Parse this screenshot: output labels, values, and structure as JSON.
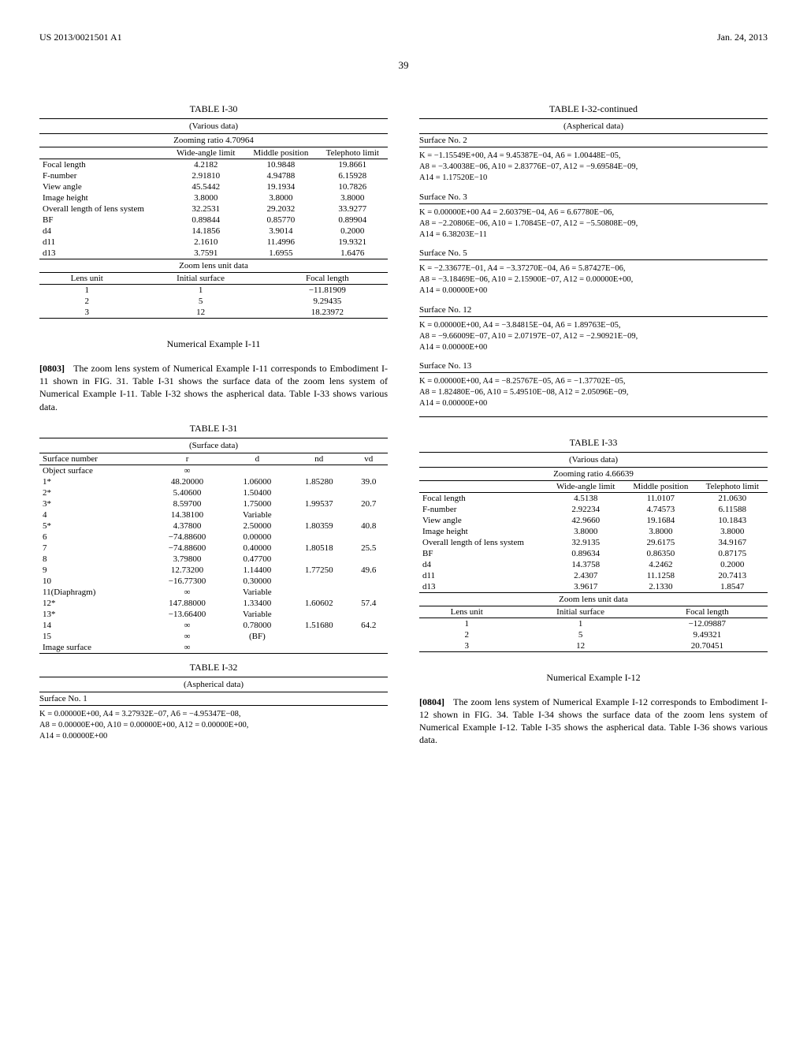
{
  "header": {
    "pubnum": "US 2013/0021501 A1",
    "date": "Jan. 24, 2013",
    "page": "39"
  },
  "tableI30": {
    "title": "TABLE I-30",
    "subtitle": "(Various data)",
    "zoom": "Zooming ratio 4.70964",
    "cols": [
      "",
      "Wide-angle limit",
      "Middle position",
      "Telephoto limit"
    ],
    "rows": [
      [
        "Focal length",
        "4.2182",
        "10.9848",
        "19.8661"
      ],
      [
        "F-number",
        "2.91810",
        "4.94788",
        "6.15928"
      ],
      [
        "View angle",
        "45.5442",
        "19.1934",
        "10.7826"
      ],
      [
        "Image height",
        "3.8000",
        "3.8000",
        "3.8000"
      ],
      [
        "Overall length of lens system",
        "32.2531",
        "29.2032",
        "33.9277"
      ],
      [
        "BF",
        "0.89844",
        "0.85770",
        "0.89904"
      ],
      [
        "d4",
        "14.1856",
        "3.9014",
        "0.2000"
      ],
      [
        "d11",
        "2.1610",
        "11.4996",
        "19.9321"
      ],
      [
        "d13",
        "3.7591",
        "1.6955",
        "1.6476"
      ]
    ],
    "zoomUnitTitle": "Zoom lens unit data",
    "zoomUnitCols": [
      "Lens unit",
      "Initial surface",
      "Focal length"
    ],
    "zoomUnitRows": [
      [
        "1",
        "1",
        "−11.81909"
      ],
      [
        "2",
        "5",
        "9.29435"
      ],
      [
        "3",
        "12",
        "18.23972"
      ]
    ]
  },
  "exampleI11": {
    "heading": "Numerical Example I-11",
    "paraNum": "[0803]",
    "text": "The zoom lens system of Numerical Example I-11 corresponds to Embodiment I-11 shown in FIG. 31. Table I-31 shows the surface data of the zoom lens system of Numerical Example I-11. Table I-32 shows the aspherical data. Table I-33 shows various data."
  },
  "tableI31": {
    "title": "TABLE I-31",
    "subtitle": "(Surface data)",
    "cols": [
      "Surface number",
      "r",
      "d",
      "nd",
      "vd"
    ],
    "rows": [
      [
        "Object surface",
        "∞",
        "",
        "",
        ""
      ],
      [
        "1*",
        "48.20000",
        "1.06000",
        "1.85280",
        "39.0"
      ],
      [
        "2*",
        "5.40600",
        "1.50400",
        "",
        ""
      ],
      [
        "3*",
        "8.59700",
        "1.75000",
        "1.99537",
        "20.7"
      ],
      [
        "4",
        "14.38100",
        "Variable",
        "",
        ""
      ],
      [
        "5*",
        "4.37800",
        "2.50000",
        "1.80359",
        "40.8"
      ],
      [
        "6",
        "−74.88600",
        "0.00000",
        "",
        ""
      ],
      [
        "7",
        "−74.88600",
        "0.40000",
        "1.80518",
        "25.5"
      ],
      [
        "8",
        "3.79800",
        "0.47700",
        "",
        ""
      ],
      [
        "9",
        "12.73200",
        "1.14400",
        "1.77250",
        "49.6"
      ],
      [
        "10",
        "−16.77300",
        "0.30000",
        "",
        ""
      ],
      [
        "11(Diaphragm)",
        "∞",
        "Variable",
        "",
        ""
      ],
      [
        "12*",
        "147.88000",
        "1.33400",
        "1.60602",
        "57.4"
      ],
      [
        "13*",
        "−13.66400",
        "Variable",
        "",
        ""
      ],
      [
        "14",
        "∞",
        "0.78000",
        "1.51680",
        "64.2"
      ],
      [
        "15",
        "∞",
        "(BF)",
        "",
        ""
      ],
      [
        "Image surface",
        "∞",
        "",
        "",
        ""
      ]
    ]
  },
  "tableI32": {
    "title": "TABLE I-32",
    "titleCont": "TABLE I-32-continued",
    "subtitle": "(Aspherical data)",
    "surfaces": [
      {
        "no": "Surface No. 1",
        "lines": [
          "K = 0.00000E+00, A4 = 3.27932E−07, A6 = −4.95347E−08,",
          "A8 = 0.00000E+00, A10 = 0.00000E+00, A12 = 0.00000E+00,",
          "A14 = 0.00000E+00"
        ]
      },
      {
        "no": "Surface No. 2",
        "lines": [
          "K = −1.15549E+00, A4 = 9.45387E−04, A6 = 1.00448E−05,",
          "A8 = −3.40038E−06, A10 = 2.83776E−07, A12 = −9.69584E−09,",
          "A14 = 1.17520E−10"
        ]
      },
      {
        "no": "Surface No. 3",
        "lines": [
          "K = 0.00000E+00 A4 = 2.60379E−04, A6 = 6.67780E−06,",
          "A8 = −2.20806E−06, A10 = 1.70845E−07, A12 = −5.50808E−09,",
          "A14 = 6.38203E−11"
        ]
      },
      {
        "no": "Surface No. 5",
        "lines": [
          "K = −2.33677E−01, A4 = −3.37270E−04, A6 = 5.87427E−06,",
          "A8 = −3.18469E−06, A10 = 2.15900E−07, A12 = 0.00000E+00,",
          "A14 = 0.00000E+00"
        ]
      },
      {
        "no": "Surface No. 12",
        "lines": [
          "K = 0.00000E+00, A4 = −3.84815E−04, A6 = 1.89763E−05,",
          "A8 = −9.66009E−07, A10 = 2.07197E−07, A12 = −2.90921E−09,",
          "A14 = 0.00000E+00"
        ]
      },
      {
        "no": "Surface No. 13",
        "lines": [
          "K = 0.00000E+00, A4 = −8.25767E−05, A6 = −1.37702E−05,",
          "A8 = 1.82480E−06, A10 = 5.49510E−08, A12 = 2.05096E−09,",
          "A14 = 0.00000E+00"
        ]
      }
    ]
  },
  "tableI33": {
    "title": "TABLE I-33",
    "subtitle": "(Various data)",
    "zoom": "Zooming ratio 4.66639",
    "cols": [
      "",
      "Wide-angle limit",
      "Middle position",
      "Telephoto limit"
    ],
    "rows": [
      [
        "Focal length",
        "4.5138",
        "11.0107",
        "21.0630"
      ],
      [
        "F-number",
        "2.92234",
        "4.74573",
        "6.11588"
      ],
      [
        "View angle",
        "42.9660",
        "19.1684",
        "10.1843"
      ],
      [
        "Image height",
        "3.8000",
        "3.8000",
        "3.8000"
      ],
      [
        "Overall length of lens system",
        "32.9135",
        "29.6175",
        "34.9167"
      ],
      [
        "BF",
        "0.89634",
        "0.86350",
        "0.87175"
      ],
      [
        "d4",
        "14.3758",
        "4.2462",
        "0.2000"
      ],
      [
        "d11",
        "2.4307",
        "11.1258",
        "20.7413"
      ],
      [
        "d13",
        "3.9617",
        "2.1330",
        "1.8547"
      ]
    ],
    "zoomUnitTitle": "Zoom lens unit data",
    "zoomUnitCols": [
      "Lens unit",
      "Initial surface",
      "Focal length"
    ],
    "zoomUnitRows": [
      [
        "1",
        "1",
        "−12.09887"
      ],
      [
        "2",
        "5",
        "9.49321"
      ],
      [
        "3",
        "12",
        "20.70451"
      ]
    ]
  },
  "exampleI12": {
    "heading": "Numerical Example I-12",
    "paraNum": "[0804]",
    "text": "The zoom lens system of Numerical Example I-12 corresponds to Embodiment I-12 shown in FIG. 34. Table I-34 shows the surface data of the zoom lens system of Numerical Example I-12. Table I-35 shows the aspherical data. Table I-36 shows various data."
  }
}
